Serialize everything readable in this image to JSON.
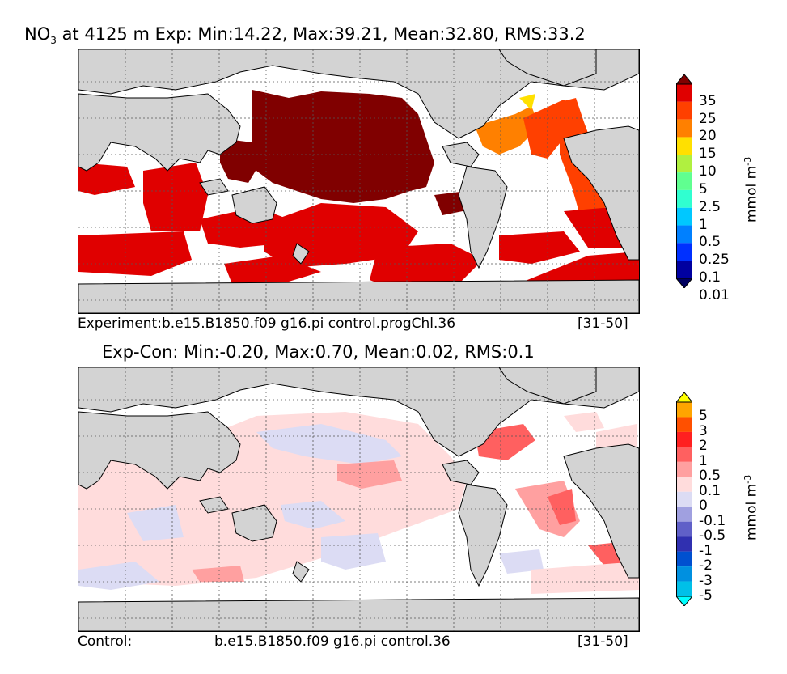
{
  "top_panel": {
    "title_prefix": "NO",
    "title_sub": "3",
    "title_rest": " at 4125 m Exp: Min:14.22, Max:39.21, Mean:32.80, RMS:33.2",
    "footer_left": "Experiment:b.e15.B1850.f09 g16.pi control.progChl.36",
    "footer_right": "[31-50]",
    "colorbar": {
      "labels": [
        "35",
        "25",
        "20",
        "15",
        "10",
        "5",
        "2.5",
        "1",
        "0.5",
        "0.25",
        "0.1",
        "0.01"
      ],
      "colors": [
        "#800000",
        "#e00000",
        "#ff4000",
        "#ff8000",
        "#ffe000",
        "#b0f040",
        "#60ff90",
        "#30ffd0",
        "#00c8ff",
        "#0080ff",
        "#0030ff",
        "#0000a0",
        "#000060"
      ],
      "units": "mmol m",
      "units_sup": "-3"
    }
  },
  "bottom_panel": {
    "title": "Exp-Con: Min:-0.20, Max:0.70, Mean:0.02, RMS:0.1",
    "footer_left": "Control:",
    "footer_mid": "b.e15.B1850.f09 g16.pi control.36",
    "footer_right": "[31-50]",
    "colorbar": {
      "labels": [
        "5",
        "3",
        "2",
        "1",
        "0.5",
        "0.1",
        "0",
        "-0.1",
        "-0.5",
        "-1",
        "-2",
        "-3",
        "-5"
      ],
      "colors": [
        "#ffff00",
        "#ffa500",
        "#ff5000",
        "#ff2020",
        "#ff6060",
        "#ffa0a0",
        "#ffdcdc",
        "#dcdcf4",
        "#a0a0e0",
        "#6060c8",
        "#3030b0",
        "#0050d0",
        "#0090e0",
        "#00c0e8",
        "#00ffff"
      ],
      "units": "mmol m",
      "units_sup": "-3"
    }
  },
  "colors": {
    "land": "#d3d3d3",
    "ocean": "#ffffff",
    "grid": "#555555"
  }
}
